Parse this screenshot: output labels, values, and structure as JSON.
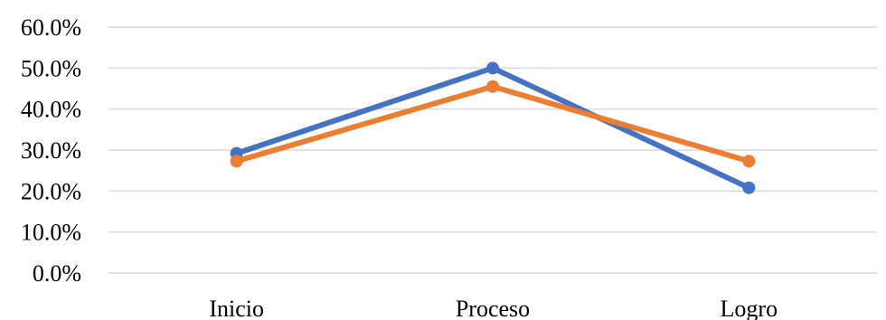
{
  "chart_data": {
    "type": "line",
    "categories": [
      "Inicio",
      "Proceso",
      "Logro"
    ],
    "series": [
      {
        "values": [
          29.2,
          50.0,
          20.8
        ],
        "color": "#4472c4"
      },
      {
        "values": [
          27.3,
          45.5,
          27.3
        ],
        "color": "#ed7d31"
      }
    ],
    "ylim": [
      0,
      60
    ],
    "yticks": [
      0,
      10,
      20,
      30,
      40,
      50,
      60
    ],
    "ytick_labels": [
      "0.0%",
      "10.0%",
      "20.0%",
      "30.0%",
      "40.0%",
      "50.0%",
      "60.0%"
    ],
    "grid": true,
    "legend": "none"
  }
}
